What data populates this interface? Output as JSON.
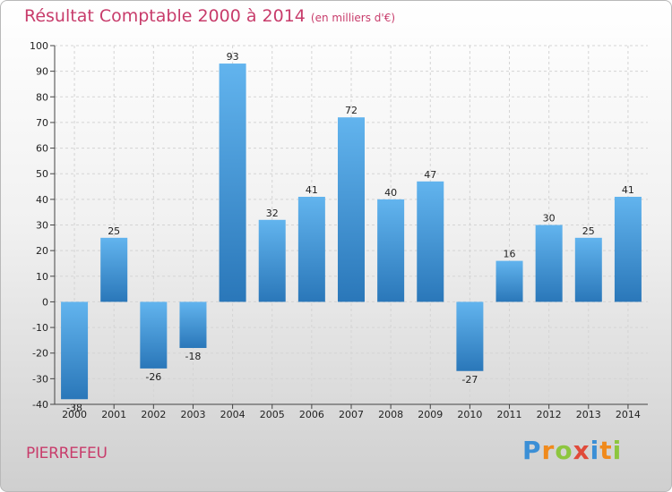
{
  "header": {
    "title": "Résultat Comptable 2000 à 2014",
    "subtitle": "(en milliers d'€)"
  },
  "footer": {
    "commune": "PIERREFEU",
    "logo": "Proxiti"
  },
  "colors": {
    "title": "#c83c6b",
    "bar_light": "#62b4ee",
    "bar_dark": "#2a77b9",
    "logo_letters": [
      "#3b8fd6",
      "#f08a1c",
      "#8dc63f",
      "#e04a3a",
      "#3b8fd6",
      "#f08a1c",
      "#8dc63f"
    ]
  },
  "chart_data": {
    "type": "bar",
    "categories": [
      "2000",
      "2001",
      "2002",
      "2003",
      "2004",
      "2005",
      "2006",
      "2007",
      "2008",
      "2009",
      "2010",
      "2011",
      "2012",
      "2013",
      "2014"
    ],
    "values": [
      -38,
      25,
      -26,
      -18,
      93,
      32,
      41,
      72,
      40,
      47,
      -27,
      16,
      30,
      25,
      41
    ],
    "ylim": [
      -40,
      100
    ],
    "yticks": [
      -40,
      -30,
      -20,
      -10,
      0,
      10,
      20,
      30,
      40,
      50,
      60,
      70,
      80,
      90,
      100
    ],
    "grid": true,
    "legend": "none"
  }
}
